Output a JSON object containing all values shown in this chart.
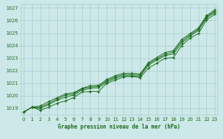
{
  "title": "Graphe pression niveau de la mer (hPa)",
  "bg_color": "#cce8e8",
  "grid_color": "#aacccc",
  "line_color": "#1a6b1a",
  "text_color": "#1a6b1a",
  "ylim": [
    1018.5,
    1027.3
  ],
  "xlim": [
    -0.3,
    23.3
  ],
  "yticks": [
    1019,
    1020,
    1021,
    1022,
    1023,
    1024,
    1025,
    1026,
    1027
  ],
  "xticks": [
    0,
    1,
    2,
    3,
    4,
    5,
    6,
    7,
    8,
    9,
    10,
    11,
    12,
    13,
    14,
    15,
    16,
    17,
    18,
    19,
    20,
    21,
    22,
    23
  ],
  "series": [
    [
      1018.7,
      1019.1,
      1018.85,
      1019.1,
      1019.4,
      1019.6,
      1019.85,
      1020.3,
      1020.35,
      1020.35,
      1021.0,
      1021.25,
      1021.5,
      1021.55,
      1021.45,
      1022.2,
      1022.6,
      1023.0,
      1023.05,
      1024.0,
      1024.6,
      1024.95,
      1026.05,
      1026.5
    ],
    [
      1018.7,
      1019.1,
      1019.0,
      1019.3,
      1019.65,
      1019.9,
      1020.05,
      1020.45,
      1020.6,
      1020.65,
      1021.1,
      1021.4,
      1021.6,
      1021.6,
      1021.55,
      1022.45,
      1022.85,
      1023.2,
      1023.35,
      1024.2,
      1024.75,
      1025.2,
      1026.2,
      1026.65
    ],
    [
      1018.7,
      1019.1,
      1019.1,
      1019.4,
      1019.75,
      1020.05,
      1020.15,
      1020.55,
      1020.7,
      1020.75,
      1021.2,
      1021.5,
      1021.7,
      1021.7,
      1021.65,
      1022.55,
      1022.95,
      1023.3,
      1023.5,
      1024.35,
      1024.85,
      1025.3,
      1026.3,
      1026.75
    ],
    [
      1018.7,
      1019.1,
      1019.2,
      1019.55,
      1019.85,
      1020.15,
      1020.25,
      1020.6,
      1020.8,
      1020.85,
      1021.3,
      1021.6,
      1021.8,
      1021.8,
      1021.75,
      1022.65,
      1023.05,
      1023.45,
      1023.6,
      1024.5,
      1024.95,
      1025.4,
      1026.4,
      1026.85
    ]
  ]
}
